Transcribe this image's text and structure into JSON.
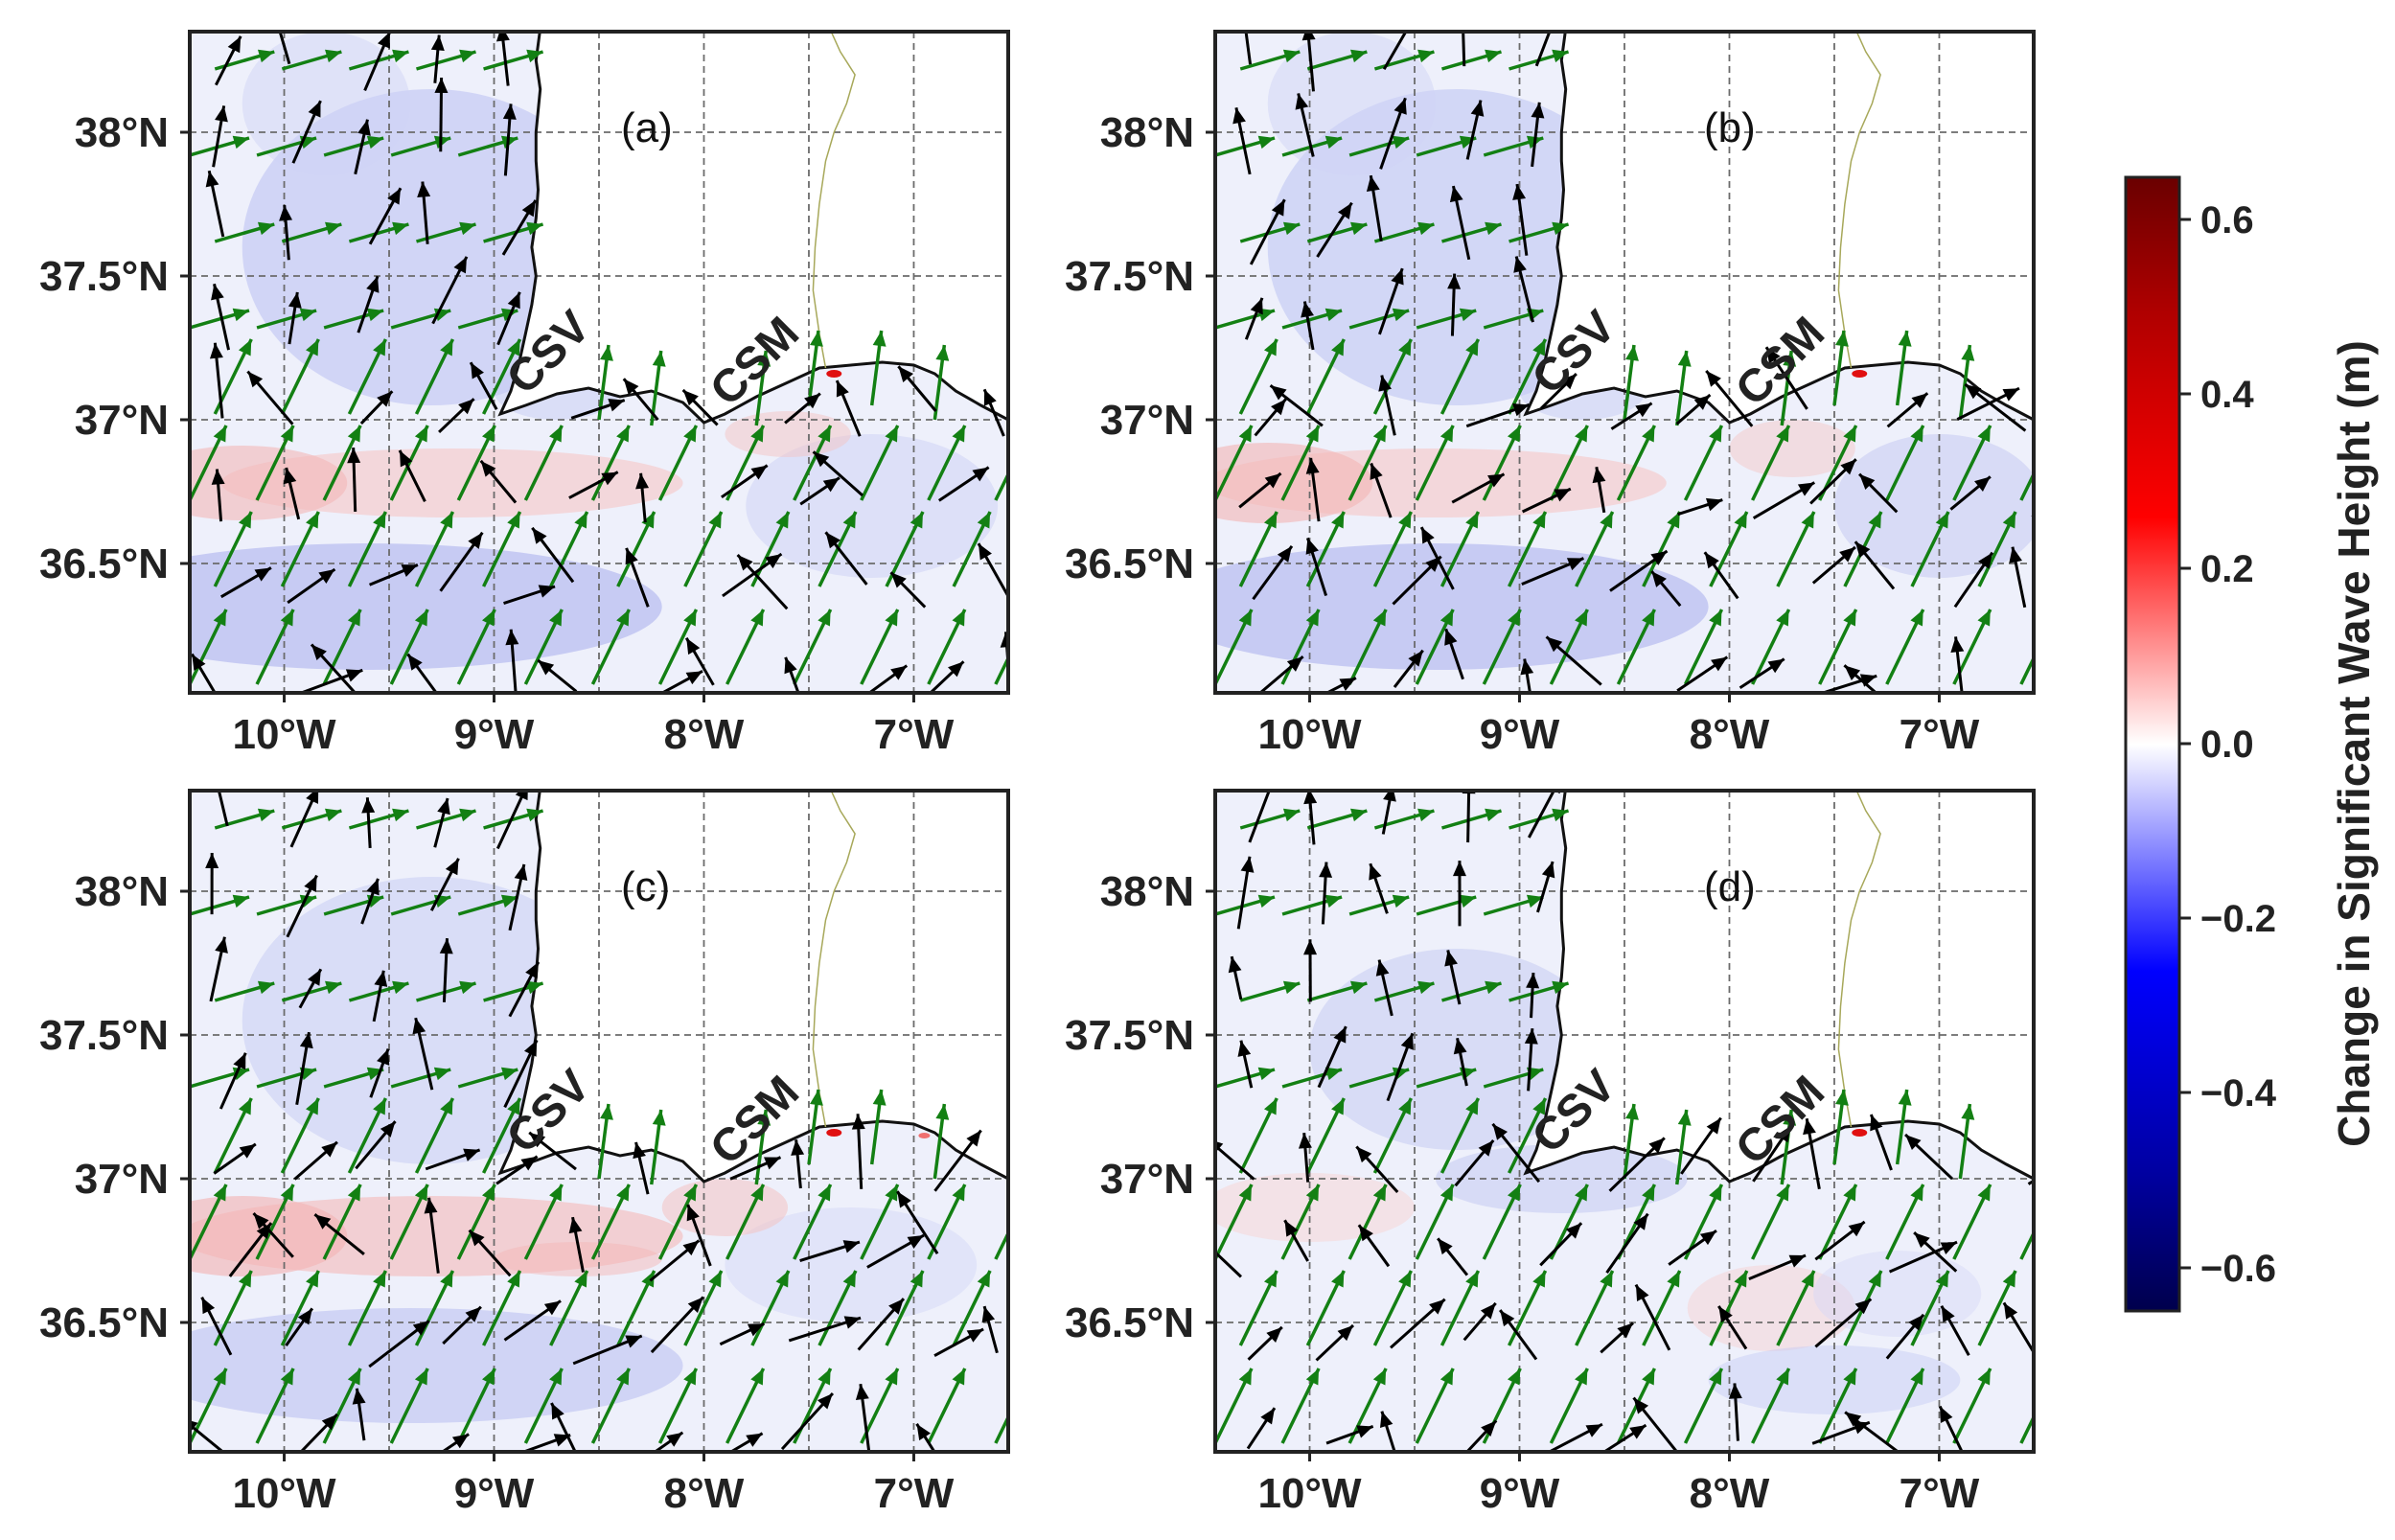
{
  "figure": {
    "panels": [
      {
        "id": "a",
        "label": "(a)"
      },
      {
        "id": "b",
        "label": "(b)"
      },
      {
        "id": "c",
        "label": "(c)"
      },
      {
        "id": "d",
        "label": "(d)"
      }
    ],
    "x_ticks": [
      "10°W",
      "9°W",
      "8°W",
      "7°W"
    ],
    "y_ticks": [
      "38°N",
      "37.5°N",
      "37°N",
      "36.5°N"
    ],
    "sites": [
      "CSV",
      "CSM"
    ],
    "colorbar": {
      "label": "Change in Significant Wave Height (m)",
      "ticks": [
        "0.6",
        "0.4",
        "0.2",
        "0.0",
        "−0.2",
        "−0.4",
        "−0.6"
      ],
      "colormap": "seismic",
      "colors": [
        "#00004c",
        "#0000ff",
        "#ffffff",
        "#ff0000",
        "#800000"
      ]
    },
    "arrow_colors": {
      "primary": "#000000",
      "secondary": "#138013"
    }
  },
  "chart_data": {
    "type": "heatmap",
    "x_extent_lon": [
      -10.45,
      -6.55
    ],
    "y_extent_lat": [
      36.05,
      38.35
    ],
    "gridlines_lon": [
      -10,
      -9.5,
      -9,
      -8.5,
      -8,
      -7.5,
      -7
    ],
    "gridlines_lat": [
      36.5,
      37,
      37.5,
      38
    ],
    "color_range": [
      -0.65,
      0.65
    ],
    "sites": [
      {
        "name": "CSV",
        "lon": -8.95,
        "lat": 37.02
      },
      {
        "name": "CSM",
        "lon": -7.98,
        "lat": 36.98
      }
    ]
  }
}
